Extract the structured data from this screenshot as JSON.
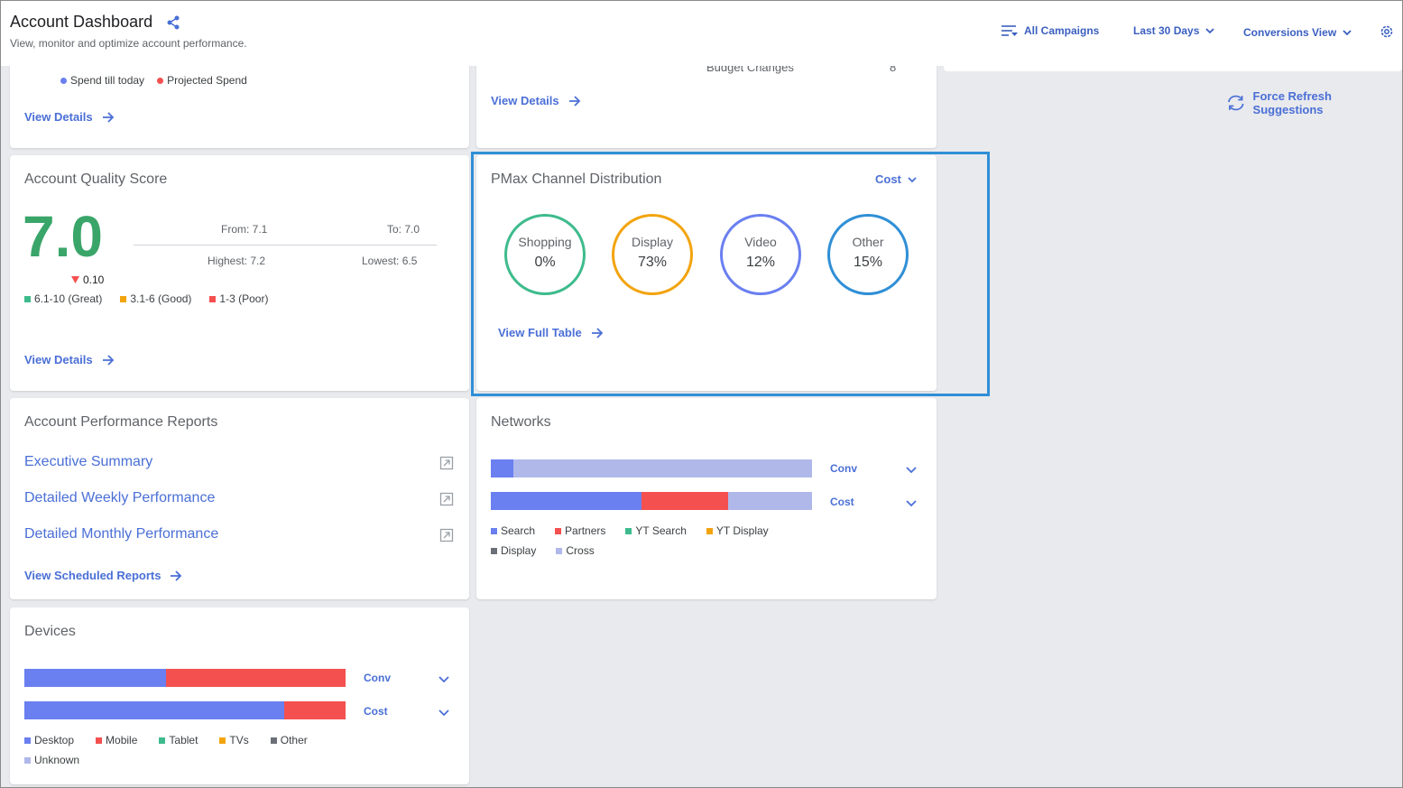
{
  "header": {
    "title": "Account Dashboard",
    "subtitle": "View, monitor and optimize account performance.",
    "campaigns": "All Campaigns",
    "date_range": "Last 30 Days",
    "view": "Conversions View"
  },
  "force_refresh": "Force Refresh Suggestions",
  "spend_card": {
    "legend_spend": "Spend till today",
    "legend_projected": "Projected Spend",
    "link": "View Details"
  },
  "budget_card": {
    "row_label": "Budget Changes",
    "row_value": "8",
    "link": "View Details"
  },
  "quality": {
    "title": "Account Quality Score",
    "score": "7.0",
    "change": "0.10",
    "from": "From: 7.1",
    "to": "To: 7.0",
    "highest": "Highest: 7.2",
    "lowest": "Lowest: 6.5",
    "legend": [
      "6.1-10 (Great)",
      "3.1-6 (Good)",
      "1-3 (Poor)"
    ],
    "link": "View Details"
  },
  "pmax": {
    "title": "PMax Channel Distribution",
    "metric": "Cost",
    "channels": [
      {
        "label": "Shopping",
        "value": "0%"
      },
      {
        "label": "Display",
        "value": "73%"
      },
      {
        "label": "Video",
        "value": "12%"
      },
      {
        "label": "Other",
        "value": "15%"
      }
    ],
    "link": "View Full Table"
  },
  "reports": {
    "title": "Account Performance Reports",
    "items": [
      "Executive Summary",
      "Detailed Weekly Performance",
      "Detailed Monthly Performance"
    ],
    "link": "View Scheduled Reports"
  },
  "networks": {
    "title": "Networks",
    "bars": [
      {
        "label": "Conv",
        "segments": [
          0.07,
          0.93
        ]
      },
      {
        "label": "Cost",
        "segments": [
          0.47,
          0.27,
          0.26
        ]
      }
    ],
    "legend": [
      "Search",
      "Partners",
      "YT Search",
      "YT Display",
      "Display",
      "Cross"
    ]
  },
  "devices": {
    "title": "Devices",
    "bars": [
      {
        "label": "Conv",
        "segments": [
          0.44,
          0.56
        ]
      },
      {
        "label": "Cost",
        "segments": [
          0.81,
          0.19
        ]
      }
    ],
    "legend": [
      "Desktop",
      "Mobile",
      "Tablet",
      "TVs",
      "Other",
      "Unknown"
    ]
  },
  "colors": {
    "blue": "#6a7ff0",
    "red": "#f4504f",
    "green": "#3ebb8c",
    "orange": "#f2a40f",
    "gray": "#6b6f78",
    "lavender": "#b0b8ea",
    "link": "#4a6fd6",
    "highlight": "#2f8fd6",
    "score_green": "#3aa569"
  }
}
